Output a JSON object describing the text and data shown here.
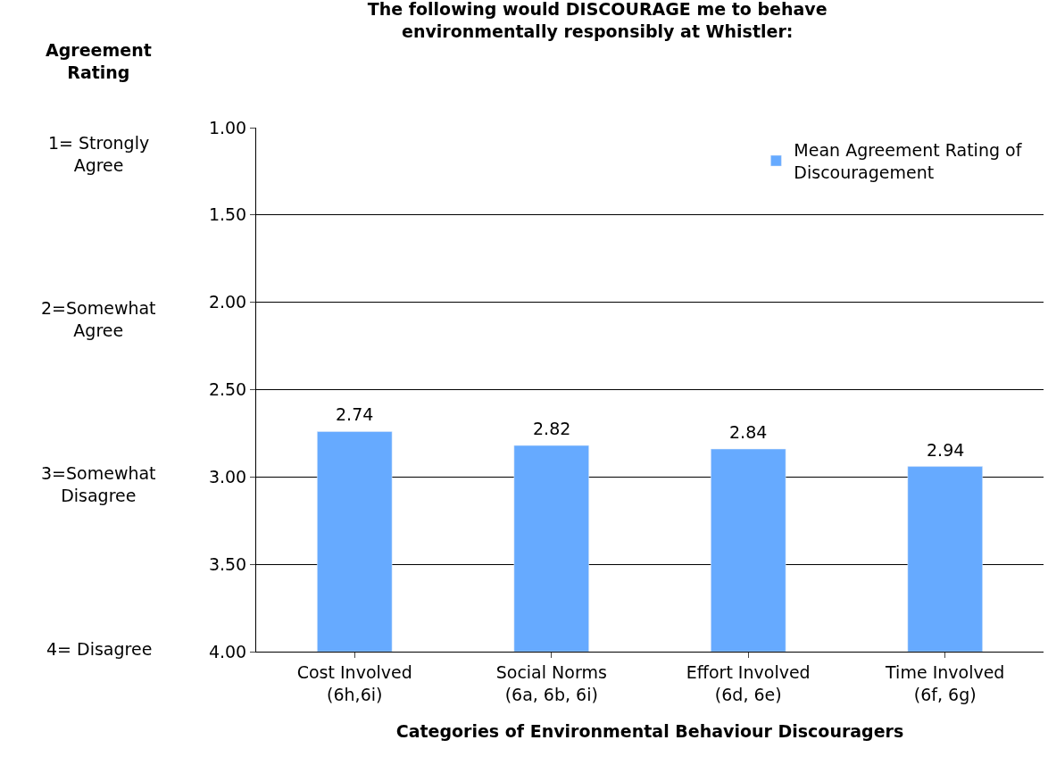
{
  "chart_data": {
    "type": "bar",
    "title": "The following would DISCOURAGE me to behave environmentally responsibly at Whistler:",
    "xlabel": "Categories of Environmental Behaviour Discouragers",
    "categories": [
      "Cost Involved (6h,6i)",
      "Social Norms (6a, 6b, 6i)",
      "Effort Involved (6d, 6e)",
      "Time Involved (6f, 6g)"
    ],
    "series": [
      {
        "name": "Mean Agreement Rating of Discouragement",
        "color": "#66aaff",
        "base": [
          4.0,
          4.0,
          4.0,
          4.0
        ],
        "values": [
          -1.26,
          -1.18,
          -1.16,
          -1.06
        ],
        "value_labels": [
          "2.74",
          "2.82",
          "2.84",
          "2.94"
        ]
      }
    ],
    "ylim": [
      4.0,
      1.0
    ],
    "yticks": [
      {
        "value": 1.0,
        "label": "1.00"
      },
      {
        "value": 1.5,
        "label": "1.50"
      },
      {
        "value": 2.0,
        "label": "2.00"
      },
      {
        "value": 2.5,
        "label": "2.50"
      },
      {
        "value": 3.0,
        "label": "3.00"
      },
      {
        "value": 3.5,
        "label": "3.50"
      },
      {
        "value": 4.0,
        "label": "4.00"
      }
    ],
    "grid": "y",
    "legend": "top right",
    "annotations": [
      "Agreement Rating",
      "1= Strongly Agree",
      "2=Somewhat Agree",
      "3=Somewhat Disagree",
      "4= Disagree"
    ]
  }
}
